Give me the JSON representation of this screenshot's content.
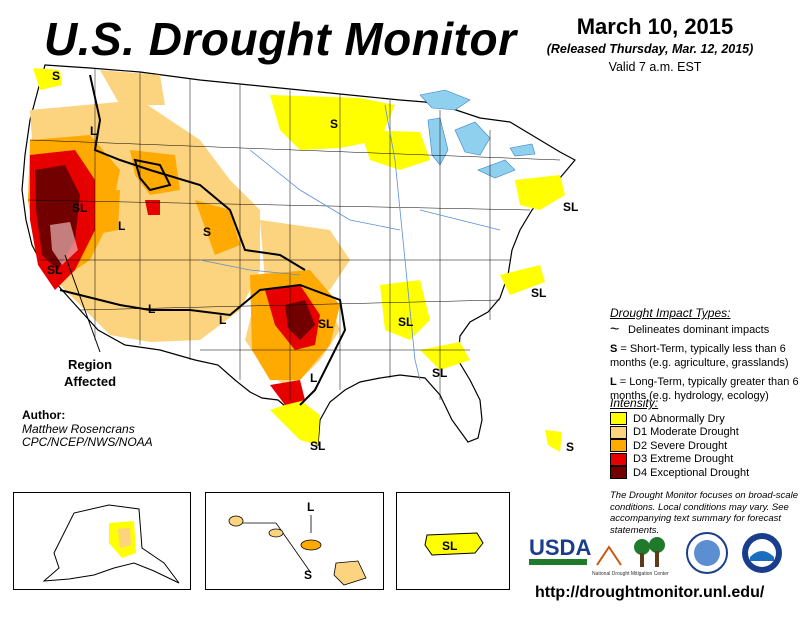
{
  "header": {
    "title": "U.S. Drought Monitor",
    "date": "March 10, 2015",
    "released": "(Released Thursday, Mar. 12, 2015)",
    "valid": "Valid 7 a.m. EST"
  },
  "map_labels": {
    "s": "S",
    "l": "L",
    "sl": "SL",
    "region_affected": [
      "Region",
      "Affected"
    ]
  },
  "author": {
    "heading": "Author:",
    "name": "Matthew Rosencrans",
    "org": "CPC/NCEP/NWS/NOAA"
  },
  "impact_types": {
    "heading": "Drought Impact Types:",
    "delineates": "Delineates dominant impacts",
    "short_term_key": "S",
    "short_term_text": "= Short-Term, typically less than 6 months (e.g. agriculture, grasslands)",
    "long_term_key": "L",
    "long_term_text": "= Long-Term, typically greater than 6 months (e.g. hydrology, ecology)"
  },
  "intensity": {
    "heading": "Intensity:",
    "levels": [
      {
        "label": "D0 Abnormally Dry",
        "color": "#ffff00"
      },
      {
        "label": "D1 Moderate Drought",
        "color": "#fcd37f"
      },
      {
        "label": "D2 Severe Drought",
        "color": "#ffaa00"
      },
      {
        "label": "D3 Extreme Drought",
        "color": "#e60000"
      },
      {
        "label": "D4 Exceptional Drought",
        "color": "#730000"
      }
    ]
  },
  "focus_note": "The Drought Monitor focuses on broad-scale conditions. Local conditions may vary. See accompanying text summary for forecast statements.",
  "logos": {
    "usda": "USDA",
    "ndmc": "National Drought Mitigation Center"
  },
  "url": "http://droughtmonitor.unl.edu/",
  "colors": {
    "water": "#8fd0ee",
    "border": "#000000",
    "river": "#5a8fd6"
  }
}
